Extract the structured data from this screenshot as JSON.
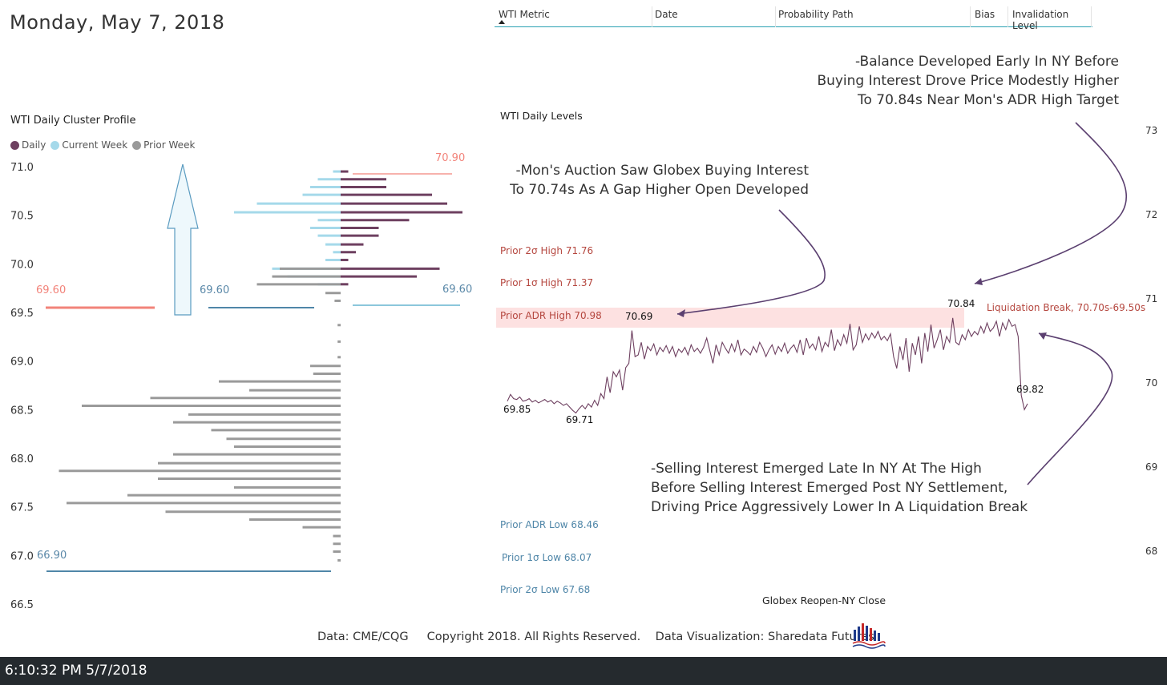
{
  "header": {
    "date_title": "Monday, May 7, 2018",
    "table_columns": [
      "WTI Metric",
      "Date",
      "Probability Path",
      "Bias",
      "Invalidation Level"
    ]
  },
  "cluster_profile": {
    "title": "WTI Daily Cluster Profile",
    "legend": [
      {
        "label": "Daily",
        "color": "#6e4060"
      },
      {
        "label": "Current Week",
        "color": "#a5d9ea"
      },
      {
        "label": "Prior Week",
        "color": "#9a9a9a"
      }
    ],
    "y_ticks": [
      "71.0",
      "70.5",
      "70.0",
      "69.5",
      "69.0",
      "68.5",
      "68.0",
      "67.5",
      "67.0",
      "66.5"
    ],
    "level_labels": {
      "daily_high": "70.90",
      "prior_low": "69.60",
      "current_week_low": "69.60",
      "daily_low": "69.60",
      "prior_week_low": "66.90"
    }
  },
  "levels_chart": {
    "title": "WTI Daily Levels",
    "y_ticks": [
      "73",
      "72",
      "71",
      "70",
      "69",
      "68"
    ],
    "x_label": "Globex Reopen-NY Close",
    "levels": {
      "prior_2s_high": "Prior 2σ High 71.76",
      "prior_1s_high": "Prior 1σ High 71.37",
      "prior_adr_high": "Prior ADR High 70.98",
      "prior_adr_low": "Prior ADR Low 68.46",
      "prior_1s_low": "Prior 1σ Low 68.07",
      "prior_2s_low": "Prior 2σ Low 67.68"
    },
    "price_labels": {
      "open": "69.85",
      "low": "69.71",
      "first_high": "70.69",
      "high": "70.84",
      "close": "69.82"
    },
    "liquidation_label": "Liquidation Break, 70.70s-69.50s"
  },
  "annotations": {
    "balance": [
      "-Balance Developed Early In NY Before",
      "Buying Interest Drove Price Modestly Higher",
      "To 70.84s Near Mon's ADR High Target"
    ],
    "auction": [
      "-Mon's Auction Saw Globex Buying Interest",
      "To 70.74s As A Gap Higher Open Developed"
    ],
    "selling": [
      "-Selling Interest Emerged Late In NY At The High",
      "Before Selling Interest Emerged Post NY Settlement,",
      "Driving Price Aggressively Lower In A Liquidation Break"
    ]
  },
  "footer": {
    "source": "Data: CME/CQG",
    "copyright": "Copyright 2018. All Rights Reserved.",
    "visualization": "Data Visualization: Sharedata Futures",
    "timestamp": "6:10:32 PM 5/7/2018"
  },
  "chart_data": [
    {
      "type": "bar",
      "title": "WTI Daily Cluster Profile",
      "orientation": "horizontal",
      "ylim": [
        66.5,
        71.0
      ],
      "series": [
        {
          "name": "Daily",
          "color": "#6e4060",
          "y": [
            70.95,
            70.87,
            70.79,
            70.71,
            70.62,
            70.53,
            70.45,
            70.37,
            70.29,
            70.2,
            70.12,
            70.04,
            69.95,
            69.87,
            69.79
          ],
          "values": [
            0.05,
            0.3,
            0.3,
            0.6,
            0.7,
            0.8,
            0.45,
            0.25,
            0.25,
            0.15,
            0.1,
            0.05,
            0.65,
            0.5,
            0.05
          ]
        },
        {
          "name": "Current Week",
          "color": "#a5d9ea",
          "y": [
            70.95,
            70.87,
            70.79,
            70.71,
            70.62,
            70.53,
            70.45,
            70.37,
            70.29,
            70.2,
            70.12,
            70.04,
            69.95,
            69.87,
            69.79,
            69.62
          ],
          "values": [
            0.05,
            0.15,
            0.2,
            0.25,
            0.55,
            0.7,
            0.15,
            0.2,
            0.15,
            0.1,
            0.05,
            0.1,
            0.45,
            0.35,
            0.15,
            0.02
          ]
        },
        {
          "name": "Prior Week",
          "color": "#9a9a9a",
          "y": [
            69.95,
            69.87,
            69.79,
            69.7,
            69.62,
            69.37,
            69.2,
            69.04,
            68.95,
            68.87,
            68.79,
            68.7,
            68.62,
            68.54,
            68.45,
            68.37,
            68.29,
            68.2,
            68.12,
            68.04,
            67.95,
            67.87,
            67.79,
            67.7,
            67.62,
            67.54,
            67.45,
            67.37,
            67.29,
            67.2,
            67.12,
            67.04,
            66.95
          ],
          "values": [
            0.4,
            0.45,
            0.55,
            0.1,
            0.04,
            0.02,
            0.02,
            0.02,
            0.2,
            0.18,
            0.8,
            0.6,
            1.25,
            1.7,
            1.0,
            1.1,
            0.85,
            0.75,
            0.7,
            1.1,
            1.2,
            1.85,
            1.2,
            0.7,
            1.4,
            1.8,
            1.15,
            0.6,
            0.25,
            0.05,
            0.05,
            0.05,
            0.02
          ]
        }
      ]
    },
    {
      "type": "line",
      "title": "WTI Daily Levels",
      "xlabel": "Globex Reopen-NY Close",
      "ylim": [
        67.5,
        73.2
      ],
      "series": [
        {
          "name": "WTI",
          "color": "#6e4060",
          "values": [
            69.85,
            69.93,
            69.88,
            69.87,
            69.9,
            69.85,
            69.86,
            69.88,
            69.84,
            69.86,
            69.83,
            69.85,
            69.87,
            69.84,
            69.86,
            69.82,
            69.85,
            69.83,
            69.8,
            69.82,
            69.78,
            69.74,
            69.71,
            69.76,
            69.8,
            69.76,
            69.82,
            69.78,
            69.86,
            69.8,
            69.94,
            69.88,
            70.14,
            69.95,
            70.2,
            70.14,
            70.22,
            69.98,
            70.25,
            70.3,
            70.69,
            70.38,
            70.4,
            70.55,
            70.35,
            70.5,
            70.45,
            70.53,
            70.4,
            70.49,
            70.44,
            70.51,
            70.42,
            70.5,
            70.38,
            70.47,
            70.43,
            70.49,
            70.4,
            70.52,
            70.44,
            70.48,
            70.42,
            70.49,
            70.6,
            70.45,
            70.3,
            70.52,
            70.4,
            70.55,
            70.48,
            70.42,
            70.53,
            70.44,
            70.58,
            70.4,
            70.47,
            70.44,
            70.4,
            70.5,
            70.43,
            70.55,
            70.48,
            70.38,
            70.46,
            70.52,
            70.41,
            70.5,
            70.44,
            70.54,
            70.42,
            70.48,
            70.52,
            70.43,
            70.58,
            70.4,
            70.6,
            70.48,
            70.53,
            70.46,
            70.62,
            70.44,
            70.55,
            70.5,
            70.7,
            70.45,
            70.58,
            70.51,
            70.64,
            70.54,
            70.77,
            70.46,
            70.52,
            70.74,
            70.55,
            70.65,
            70.58,
            70.66,
            70.6,
            70.68,
            70.58,
            70.62,
            70.57,
            70.65,
            70.38,
            70.24,
            70.5,
            70.34,
            70.6,
            70.2,
            70.54,
            70.4,
            70.62,
            70.3,
            70.66,
            70.44,
            70.76,
            70.48,
            70.58,
            70.7,
            70.46,
            70.62,
            70.55,
            70.84,
            70.55,
            70.52,
            70.64,
            70.58,
            70.7,
            70.62,
            70.68,
            70.64,
            70.74,
            70.66,
            70.78,
            70.68,
            70.72,
            70.8,
            70.62,
            70.78,
            70.7,
            70.82,
            70.74,
            70.76,
            70.62,
            69.92,
            69.75,
            69.82
          ]
        }
      ]
    }
  ]
}
